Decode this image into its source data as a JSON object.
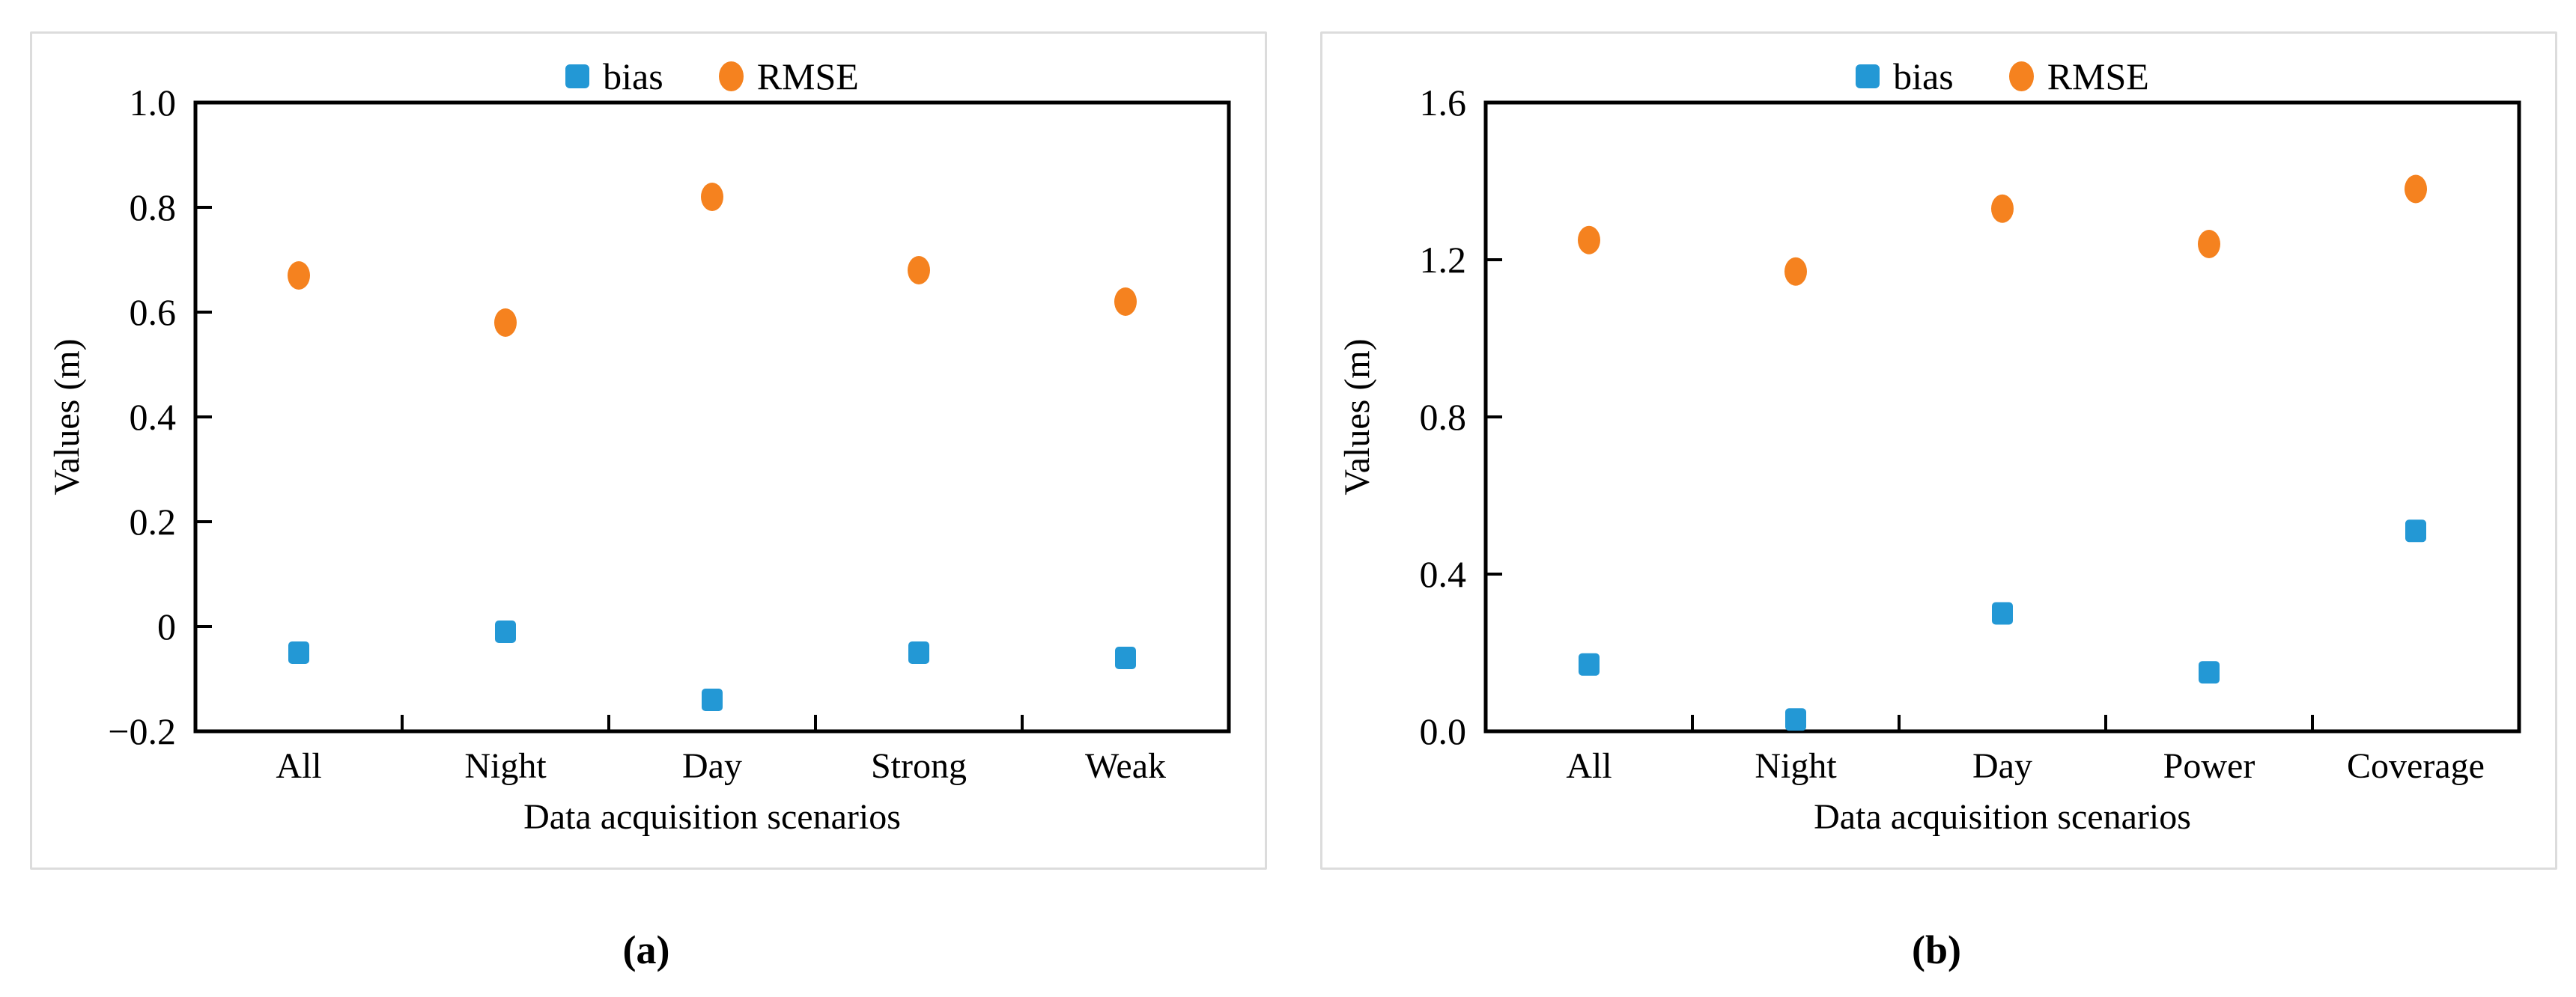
{
  "page": {
    "background": "#ffffff"
  },
  "colors": {
    "bias": "#2398d5",
    "rmse": "#f5821f",
    "axis": "#000000",
    "panel_border": "#dcdcdc",
    "text": "#000000"
  },
  "legend": {
    "bias_label": "bias",
    "rmse_label": "RMSE"
  },
  "captions": {
    "a": "(a)",
    "b": "(b)"
  },
  "chart_data": [
    {
      "id": "a",
      "type": "scatter",
      "categories": [
        "All",
        "Night",
        "Day",
        "Strong",
        "Weak"
      ],
      "series": [
        {
          "name": "bias",
          "marker": "square",
          "color_key": "bias",
          "values": [
            -0.05,
            -0.01,
            -0.14,
            -0.05,
            -0.06
          ]
        },
        {
          "name": "RMSE",
          "marker": "circle",
          "color_key": "rmse",
          "values": [
            0.67,
            0.58,
            0.82,
            0.68,
            0.62
          ]
        }
      ],
      "xlabel": "Data acquisition scenarios",
      "ylabel": "Values (m)",
      "ylim": [
        -0.2,
        1.0
      ],
      "ytick_values": [
        1.0,
        0.8,
        0.6,
        0.4,
        0.2,
        0.0,
        -0.2
      ],
      "ytick_labels": [
        "1.0",
        "0.8",
        "0.6",
        "0.4",
        "0.2",
        "0",
        "−0.2"
      ],
      "grid": false,
      "legend_position": "top",
      "caption": "(a)"
    },
    {
      "id": "b",
      "type": "scatter",
      "categories": [
        "All",
        "Night",
        "Day",
        "Power",
        "Coverage"
      ],
      "series": [
        {
          "name": "bias",
          "marker": "square",
          "color_key": "bias",
          "values": [
            0.17,
            0.03,
            0.3,
            0.15,
            0.51
          ]
        },
        {
          "name": "RMSE",
          "marker": "circle",
          "color_key": "rmse",
          "values": [
            1.25,
            1.17,
            1.33,
            1.24,
            1.38
          ]
        }
      ],
      "xlabel": "Data acquisition scenarios",
      "ylabel": "Values (m)",
      "ylim": [
        0.0,
        1.6
      ],
      "ytick_values": [
        1.6,
        1.2,
        0.8,
        0.4,
        0.0
      ],
      "ytick_labels": [
        "1.6",
        "1.2",
        "0.8",
        "0.4",
        "0.0"
      ],
      "grid": false,
      "legend_position": "top",
      "caption": "(b)"
    }
  ]
}
